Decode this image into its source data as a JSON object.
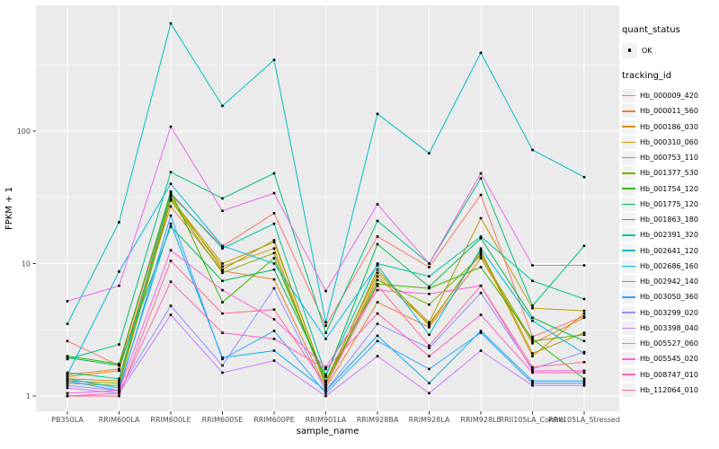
{
  "legend": {
    "quant_title": "quant_status",
    "quant_items": [
      {
        "label": "OK",
        "marker": "black-point"
      }
    ],
    "tracking_title": "tracking_id"
  },
  "chart_data": {
    "type": "line",
    "title": "",
    "xlabel": "sample_name",
    "ylabel": "FPKM + 1",
    "y_scale": "log10",
    "y_ticks": [
      1,
      10,
      100
    ],
    "y_minor_ticks": [
      3.162,
      31.62,
      316.2
    ],
    "grid": true,
    "legend_position": "right",
    "style": {
      "panel_background": "#EBEBEB",
      "grid_color": "#FFFFFF",
      "tick_color": "#333333",
      "axis_text_color": "#4D4D4D",
      "axis_title_color": "#000000",
      "point_color": "#000000",
      "legend_key_fill": "#F2F2F2"
    },
    "categories": [
      "PB350LA",
      "RRIM600LA",
      "RRIM600LE",
      "RRIM600SE",
      "RRIM600PE",
      "RRIM901LA",
      "RRIM928BA",
      "RRIM928LA",
      "RRIM928LE",
      "RRII105LA_Control",
      "RRII105LA_Stressed"
    ],
    "series": [
      {
        "name": "Hb_000009_420",
        "color": "#F8766D",
        "values": [
          2.6,
          1.7,
          33,
          13.5,
          24,
          3.4,
          16,
          9.4,
          33,
          2.8,
          4.0
        ]
      },
      {
        "name": "Hb_000011_560",
        "color": "#EA8331",
        "values": [
          1.45,
          1.6,
          27,
          8.8,
          7.6,
          1.15,
          5.1,
          3.3,
          11,
          2.5,
          3.9
        ]
      },
      {
        "name": "Hb_000186_030",
        "color": "#D89000",
        "values": [
          1.4,
          1.55,
          30,
          9.5,
          13,
          1.2,
          8.0,
          3.5,
          12,
          2.0,
          4.2
        ]
      },
      {
        "name": "Hb_000310_060",
        "color": "#C09B00",
        "values": [
          1.35,
          1.3,
          31,
          10,
          14.5,
          1.3,
          8.5,
          3.6,
          22,
          4.6,
          4.4
        ]
      },
      {
        "name": "Hb_000753_110",
        "color": "#A3A500",
        "values": [
          1.3,
          1.25,
          32,
          9.0,
          15,
          1.25,
          9.0,
          3.4,
          12.5,
          2.1,
          3.0
        ]
      },
      {
        "name": "Hb_001377_530",
        "color": "#7CAE00",
        "values": [
          1.25,
          1.2,
          30,
          8.5,
          12,
          1.2,
          7.5,
          4.9,
          11.5,
          2.6,
          2.9
        ]
      },
      {
        "name": "Hb_001754_120",
        "color": "#39B600",
        "values": [
          2.0,
          1.75,
          35,
          5.1,
          11,
          1.3,
          7.0,
          6.5,
          9.4,
          2.7,
          1.35
        ]
      },
      {
        "name": "Hb_001775_120",
        "color": "#00BB4E",
        "values": [
          1.95,
          1.7,
          19,
          7.4,
          9.0,
          1.4,
          14,
          6.7,
          15.5,
          3.9,
          2.6
        ]
      },
      {
        "name": "Hb_001863_180",
        "color": "#00BF7D",
        "values": [
          1.9,
          2.45,
          49,
          31,
          48,
          3.0,
          21,
          10,
          44,
          4.8,
          13.6
        ]
      },
      {
        "name": "Hb_002391_320",
        "color": "#00C1A3",
        "values": [
          1.5,
          1.35,
          34,
          13,
          20,
          1.45,
          10,
          8.0,
          16,
          7.4,
          5.4
        ]
      },
      {
        "name": "Hb_002641_120",
        "color": "#00BFC4",
        "values": [
          3.5,
          20.5,
          650,
          155,
          345,
          3.6,
          135,
          68,
          390,
          72,
          45
        ]
      },
      {
        "name": "Hb_002686_160",
        "color": "#00BAE0",
        "values": [
          1.45,
          8.7,
          40,
          13.6,
          10,
          2.7,
          9.7,
          2.9,
          13,
          3.7,
          2.1
        ]
      },
      {
        "name": "Hb_002942_140",
        "color": "#00B0F6",
        "values": [
          1.35,
          1.15,
          20,
          1.95,
          2.2,
          1.1,
          2.85,
          1.25,
          3.1,
          1.3,
          1.3
        ]
      },
      {
        "name": "Hb_003050_360",
        "color": "#35A2FF",
        "values": [
          1.3,
          1.1,
          23,
          1.9,
          3.1,
          1.05,
          2.6,
          1.6,
          3.0,
          1.25,
          1.25
        ]
      },
      {
        "name": "Hb_003299_020",
        "color": "#9590FF",
        "values": [
          1.2,
          1.1,
          4.8,
          1.7,
          6.5,
          1.1,
          3.5,
          2.3,
          6.0,
          1.6,
          2.15
        ]
      },
      {
        "name": "Hb_003398_040",
        "color": "#C77CFF",
        "values": [
          1.15,
          1.05,
          4.1,
          1.5,
          1.85,
          1.0,
          2.0,
          1.05,
          2.2,
          1.2,
          1.2
        ]
      },
      {
        "name": "Hb_005527_060",
        "color": "#E76BF3",
        "values": [
          5.2,
          6.8,
          108,
          25,
          34,
          6.2,
          28,
          10,
          48,
          9.7,
          9.7
        ]
      },
      {
        "name": "Hb_005545_020",
        "color": "#FA62DB",
        "values": [
          1.05,
          1.1,
          12.6,
          6.3,
          3.8,
          1.65,
          6.3,
          5.9,
          6.8,
          1.55,
          1.55
        ]
      },
      {
        "name": "Hb_008747_010",
        "color": "#FF62BC",
        "values": [
          1.0,
          1.05,
          7.3,
          3.0,
          2.7,
          1.6,
          4.2,
          2.0,
          4.1,
          1.5,
          1.5
        ]
      },
      {
        "name": "Hb_112064_010",
        "color": "#FF6A98",
        "values": [
          1.0,
          1.0,
          10.5,
          4.2,
          4.5,
          1.2,
          6.8,
          2.4,
          6.8,
          1.65,
          1.8
        ]
      }
    ]
  }
}
